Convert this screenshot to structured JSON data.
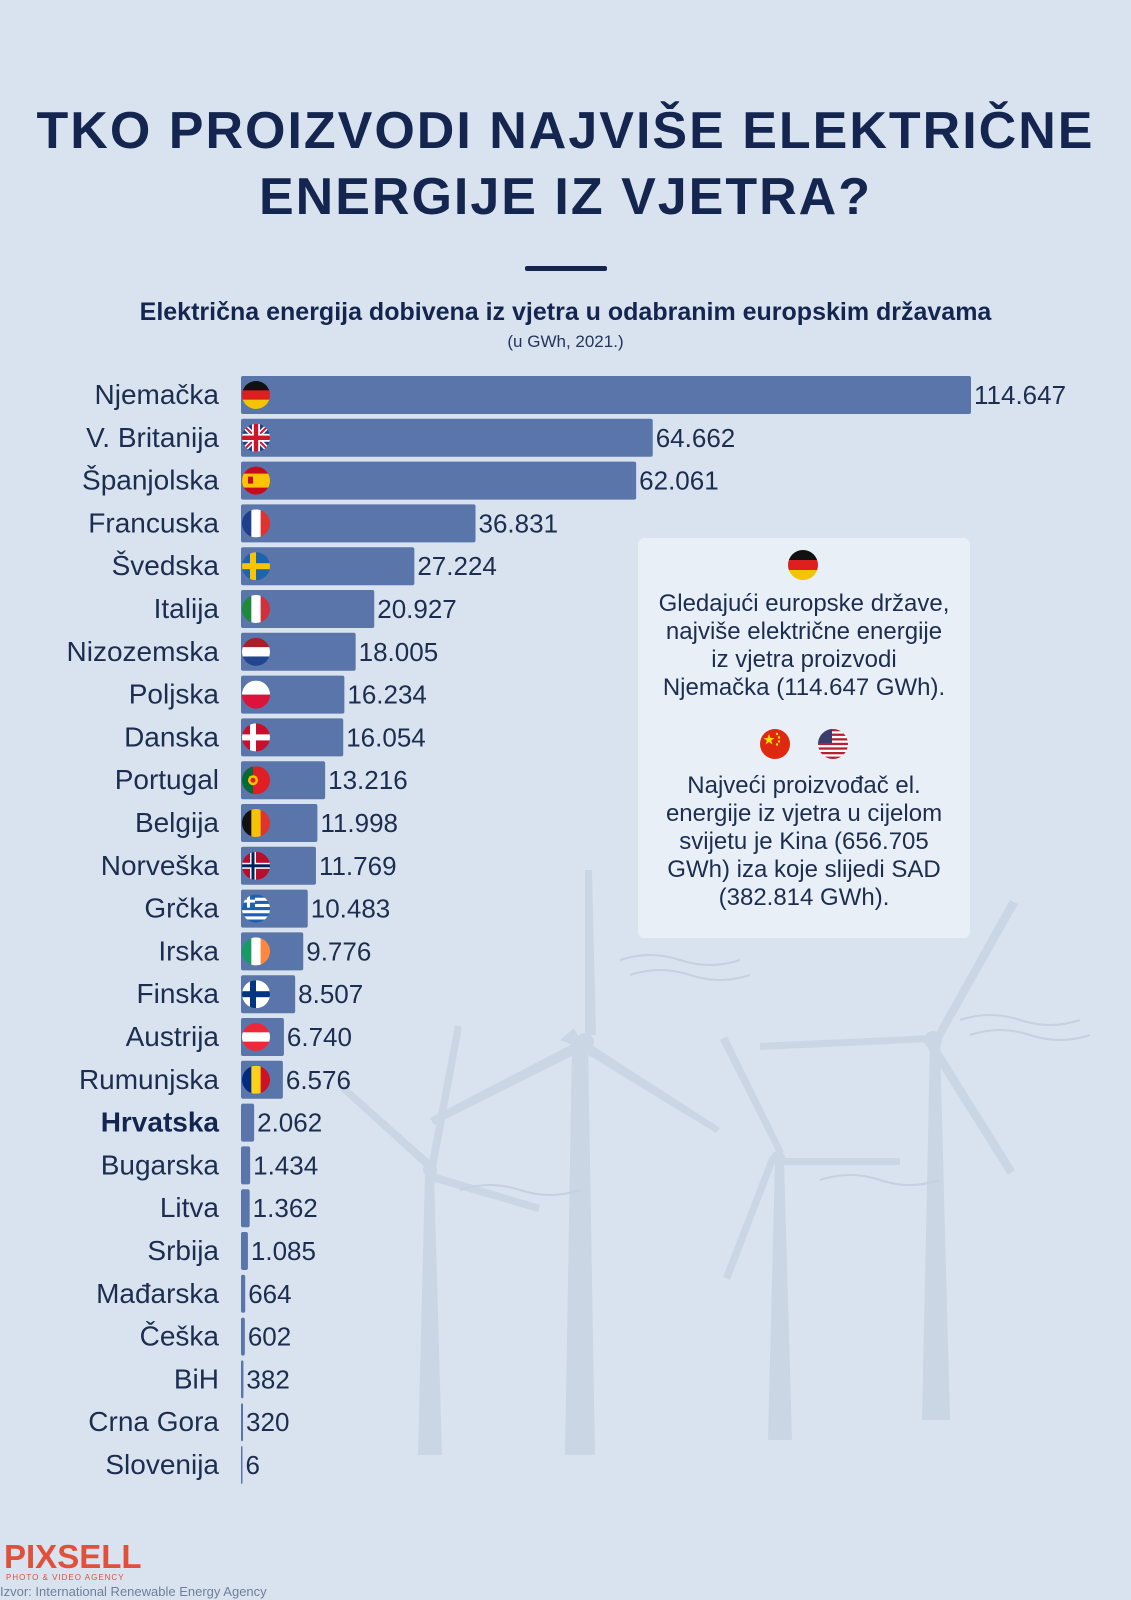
{
  "header": {
    "title_line1": "TKO PROIZVODI NAJVIŠE ELEKTRIČNE",
    "title_line2": "ENERGIJE IZ VJETRA?",
    "subtitle": "Električna energija dobivena iz vjetra u odabranim europskim državama",
    "units": "(u GWh, 2021.)"
  },
  "chart_data": {
    "type": "bar",
    "orientation": "horizontal",
    "categories": [
      "Njemačka",
      "V. Britanija",
      "Španjolska",
      "Francuska",
      "Švedska",
      "Italija",
      "Nizozemska",
      "Poljska",
      "Danska",
      "Portugal",
      "Belgija",
      "Norveška",
      "Grčka",
      "Irska",
      "Finska",
      "Austrija",
      "Rumunjska",
      "Hrvatska",
      "Bugarska",
      "Litva",
      "Srbija",
      "Mađarska",
      "Češka",
      "BiH",
      "Crna Gora",
      "Slovenija"
    ],
    "values": [
      114647,
      64662,
      62061,
      36831,
      27224,
      20927,
      18005,
      16234,
      16054,
      13216,
      11998,
      11769,
      10483,
      9776,
      8507,
      6740,
      6576,
      2062,
      1434,
      1362,
      1085,
      664,
      602,
      382,
      320,
      6
    ],
    "value_labels": [
      "114.647",
      "64.662",
      "62.061",
      "36.831",
      "27.224",
      "20.927",
      "18.005",
      "16.234",
      "16.054",
      "13.216",
      "11.998",
      "11.769",
      "10.483",
      "9.776",
      "8.507",
      "6.740",
      "6.576",
      "2.062",
      "1.434",
      "1.362",
      "1.085",
      "664",
      "602",
      "382",
      "320",
      "6"
    ],
    "flags": [
      "de",
      "gb",
      "es",
      "fr",
      "se",
      "it",
      "nl",
      "pl",
      "dk",
      "pt",
      "be",
      "no",
      "gr",
      "ie",
      "fi",
      "at",
      "ro",
      "",
      "",
      "",
      "",
      "",
      "",
      "",
      "",
      ""
    ],
    "highlight": "Hrvatska",
    "bar_color": "#5975a9",
    "xlim": [
      0,
      114647
    ]
  },
  "info_box": {
    "text1": "Gledajući europske države, najviše električne energije iz vjetra  proizvodi Njemačka (114.647 GWh).",
    "text1_lines": [
      "Gledajući europske države,",
      "najviše električne energije",
      "iz vjetra  proizvodi",
      "Njemačka (114.647 GWh)."
    ],
    "text2_lines": [
      "Najveći proizvođač el.",
      "energije iz vjetra u cijelom",
      "svijetu je Kina (656.705",
      "GWh) iza koje slijedi SAD",
      "(382.814 GWh)."
    ],
    "icons": [
      "germany-flag-icon",
      "china-flag-icon",
      "usa-flag-icon"
    ]
  },
  "footer": {
    "logo": "PIXSELL",
    "logo_tagline": "PHOTO & VIDEO AGENCY",
    "source": "Izvor: International Renewable Energy Agency"
  },
  "colors": {
    "background": "#d9e3ef",
    "title": "#14264f",
    "bar": "#5975a9",
    "info_box": "#e9eff7",
    "logo": "#e0503b"
  }
}
